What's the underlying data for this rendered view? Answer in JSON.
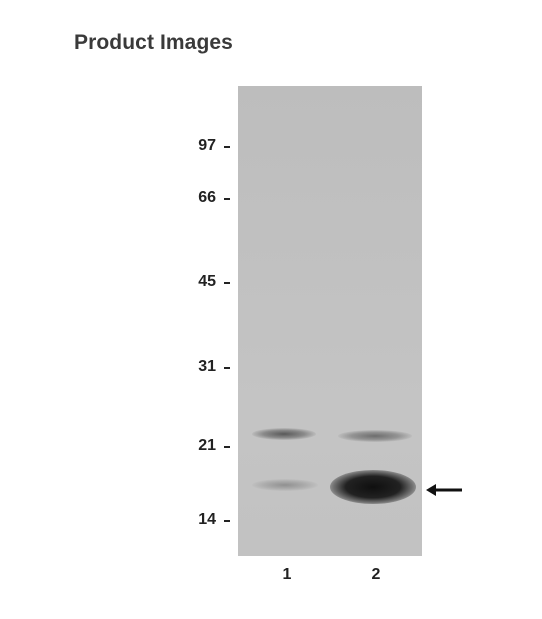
{
  "header": {
    "title": "Product Images"
  },
  "blot": {
    "markers": [
      "97",
      "66",
      "45",
      "31",
      "21",
      "14"
    ],
    "lanes": [
      "1",
      "2"
    ]
  },
  "arrow_icon": "left-arrow-icon"
}
